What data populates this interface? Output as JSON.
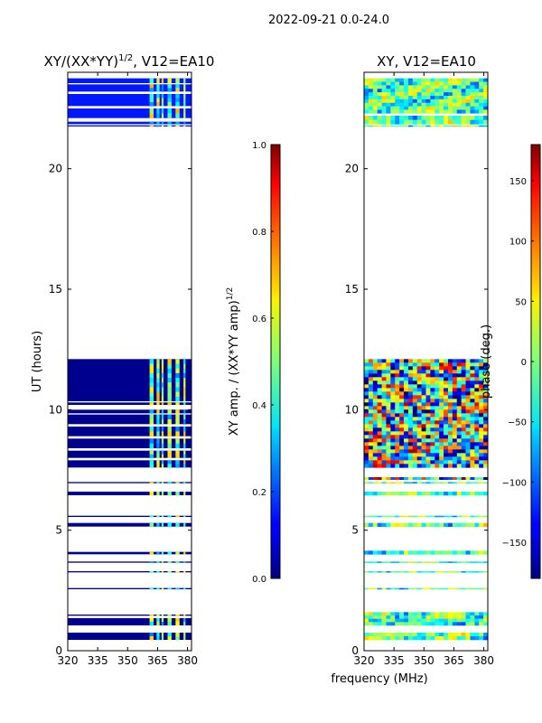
{
  "suptitle": "2022-09-21 0.0-24.0",
  "chart_data": [
    {
      "type": "heatmap",
      "title_prefix": "XY/(XX*YY)",
      "title_power": "1/2",
      "title_suffix": ", V12=EA10",
      "xlabel": "",
      "ylabel": "UT (hours)",
      "xlim": [
        320,
        382
      ],
      "ylim": [
        0,
        24
      ],
      "xticks": [
        320,
        335,
        350,
        365,
        380
      ],
      "yticks": [
        0,
        5,
        10,
        15,
        20
      ],
      "colorbar": {
        "label_prefix": "XY amp. / (XX*YY amp)",
        "label_power": "1/2",
        "range": [
          0.0,
          1.0
        ],
        "ticks": [
          "0.0",
          "0.2",
          "0.4",
          "0.6",
          "0.8",
          "1.0"
        ],
        "tick_values": [
          0.0,
          0.2,
          0.4,
          0.6,
          0.8,
          1.0
        ]
      },
      "data_bands_ut": [
        [
          0.45,
          0.75
        ],
        [
          1.05,
          1.35
        ],
        [
          1.45,
          1.5
        ],
        [
          2.55,
          2.6
        ],
        [
          3.25,
          3.3
        ],
        [
          3.65,
          3.7
        ],
        [
          4.0,
          4.1
        ],
        [
          5.15,
          5.3
        ],
        [
          5.55,
          5.6
        ],
        [
          6.45,
          6.6
        ],
        [
          6.95,
          7.0
        ],
        [
          7.6,
          7.9
        ],
        [
          8.0,
          8.3
        ],
        [
          8.4,
          8.8
        ],
        [
          8.9,
          9.3
        ],
        [
          9.4,
          9.8
        ],
        [
          9.85,
          10.0
        ],
        [
          10.2,
          10.3
        ],
        [
          10.35,
          12.1
        ],
        [
          21.75,
          21.8
        ],
        [
          21.85,
          21.95
        ],
        [
          22.1,
          22.5
        ],
        [
          22.6,
          23.1
        ],
        [
          23.2,
          23.5
        ],
        [
          23.55,
          23.75
        ]
      ],
      "bright_freq_mhz": [
        [
          361,
          363
        ],
        [
          364.5,
          366
        ],
        [
          367,
          368
        ],
        [
          370,
          372
        ],
        [
          374,
          376
        ],
        [
          378,
          379
        ]
      ]
    },
    {
      "type": "heatmap",
      "title_prefix": "XY",
      "title_suffix": ", V12=EA10",
      "xlabel": "frequency (MHz)",
      "ylabel": "",
      "xlim": [
        320,
        382
      ],
      "ylim": [
        0,
        24
      ],
      "xticks": [
        320,
        335,
        350,
        365,
        380
      ],
      "yticks": [
        0,
        5,
        10,
        15,
        20
      ],
      "colorbar": {
        "label": "phase (deg.)",
        "range": [
          -180,
          180
        ],
        "ticks": [
          "150",
          "100",
          "50",
          "0",
          "−50",
          "−100",
          "−150"
        ],
        "tick_values": [
          150,
          100,
          50,
          0,
          -50,
          -100,
          -150
        ]
      },
      "data_bands_ut": [
        [
          0.45,
          0.75
        ],
        [
          1.05,
          1.6
        ],
        [
          2.55,
          2.6
        ],
        [
          3.25,
          3.3
        ],
        [
          3.65,
          3.7
        ],
        [
          4.0,
          4.15
        ],
        [
          5.15,
          5.3
        ],
        [
          5.55,
          5.6
        ],
        [
          6.45,
          6.6
        ],
        [
          6.95,
          7.0
        ],
        [
          7.1,
          7.2
        ],
        [
          7.6,
          12.1
        ],
        [
          21.75,
          21.8
        ],
        [
          21.85,
          22.2
        ],
        [
          22.3,
          23.75
        ]
      ]
    }
  ]
}
